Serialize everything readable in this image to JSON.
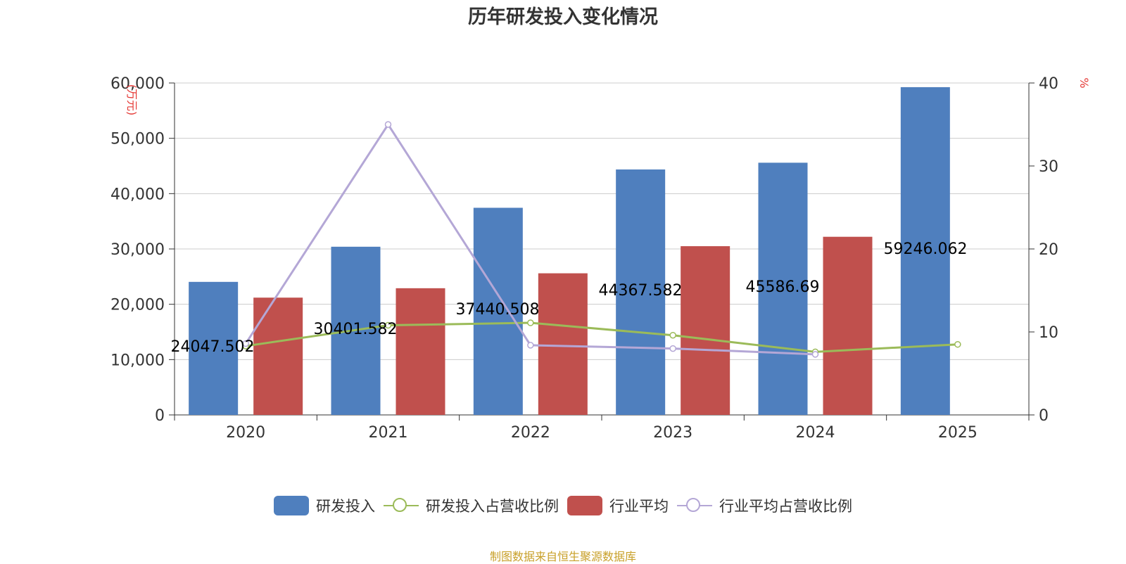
{
  "title": "历年研发投入变化情况",
  "source": "制图数据来自恒生聚源数据库",
  "colors": {
    "rd": "#4f7fbe",
    "industry": "#c0504d",
    "rd_ratio": "#9bbb59",
    "industry_ratio": "#b4a7d6",
    "axis_unit": "#e53935",
    "source": "#c8a029",
    "grid": "#cccccc",
    "axis": "#333333"
  },
  "chart_data": {
    "type": "bar",
    "categories": [
      "2020",
      "2021",
      "2022",
      "2023",
      "2024",
      "2025"
    ],
    "y_left": {
      "label": "(万元)",
      "min": 0,
      "max": 60000,
      "ticks": [
        "0",
        "10,000",
        "20,000",
        "30,000",
        "40,000",
        "50,000",
        "60,000"
      ]
    },
    "y_right": {
      "label": "%",
      "min": 0,
      "max": 40,
      "ticks": [
        "0",
        "10",
        "20",
        "30",
        "40"
      ]
    },
    "series": [
      {
        "name": "研发投入",
        "kind": "bar",
        "axis": "left",
        "values": [
          24047.502,
          30401.582,
          37440.508,
          44367.582,
          45586.69,
          59246.062
        ],
        "labels": [
          "24047.502",
          "30401.582",
          "37440.508",
          "44367.582",
          "45586.69",
          "59246.062"
        ]
      },
      {
        "name": "研发投入占营收比例",
        "kind": "line",
        "axis": "right",
        "values": [
          8.3,
          10.8,
          11.1,
          9.6,
          7.6,
          8.5
        ]
      },
      {
        "name": "行业平均",
        "kind": "bar",
        "axis": "left",
        "values": [
          21200,
          22900,
          25600,
          30500,
          32200,
          null
        ]
      },
      {
        "name": "行业平均占营收比例",
        "kind": "line",
        "axis": "right",
        "values": [
          8.6,
          35.0,
          8.4,
          8.0,
          7.3,
          null
        ]
      }
    ],
    "legend": [
      "研发投入",
      "研发投入占营收比例",
      "行业平均",
      "行业平均占营收比例"
    ]
  }
}
